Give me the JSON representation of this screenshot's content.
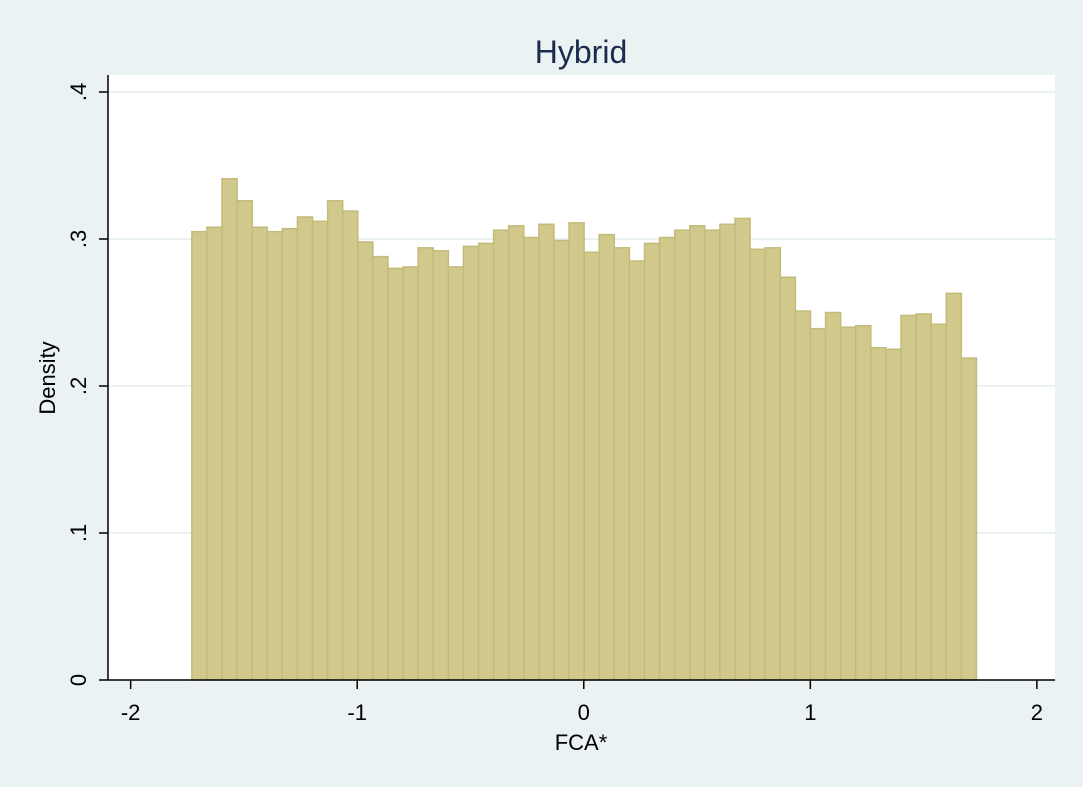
{
  "chart_data": {
    "type": "bar",
    "title": "Hybrid",
    "xlabel": "FCA*",
    "ylabel": "Density",
    "xlim": [
      -2.1,
      2.08
    ],
    "ylim": [
      0,
      0.4
    ],
    "xticks": [
      {
        "value": -2,
        "label": "-2"
      },
      {
        "value": -1,
        "label": "-1"
      },
      {
        "value": 0,
        "label": "0"
      },
      {
        "value": 1,
        "label": "1"
      },
      {
        "value": 2,
        "label": "2"
      }
    ],
    "yticks": [
      {
        "value": 0,
        "label": "0"
      },
      {
        "value": 0.1,
        "label": ".1"
      },
      {
        "value": 0.2,
        "label": ".2"
      },
      {
        "value": 0.3,
        "label": ".3"
      },
      {
        "value": 0.4,
        "label": ".4"
      }
    ],
    "grid": true,
    "bin_start": -1.73,
    "bin_width": 0.0666,
    "values": [
      0.305,
      0.308,
      0.341,
      0.326,
      0.308,
      0.305,
      0.307,
      0.315,
      0.312,
      0.326,
      0.319,
      0.298,
      0.288,
      0.28,
      0.281,
      0.294,
      0.292,
      0.281,
      0.295,
      0.297,
      0.306,
      0.309,
      0.301,
      0.31,
      0.299,
      0.311,
      0.291,
      0.303,
      0.294,
      0.285,
      0.297,
      0.301,
      0.306,
      0.309,
      0.306,
      0.31,
      0.314,
      0.293,
      0.294,
      0.274,
      0.251,
      0.239,
      0.25,
      0.24,
      0.241,
      0.226,
      0.225,
      0.248,
      0.249,
      0.242,
      0.263,
      0.219
    ]
  }
}
